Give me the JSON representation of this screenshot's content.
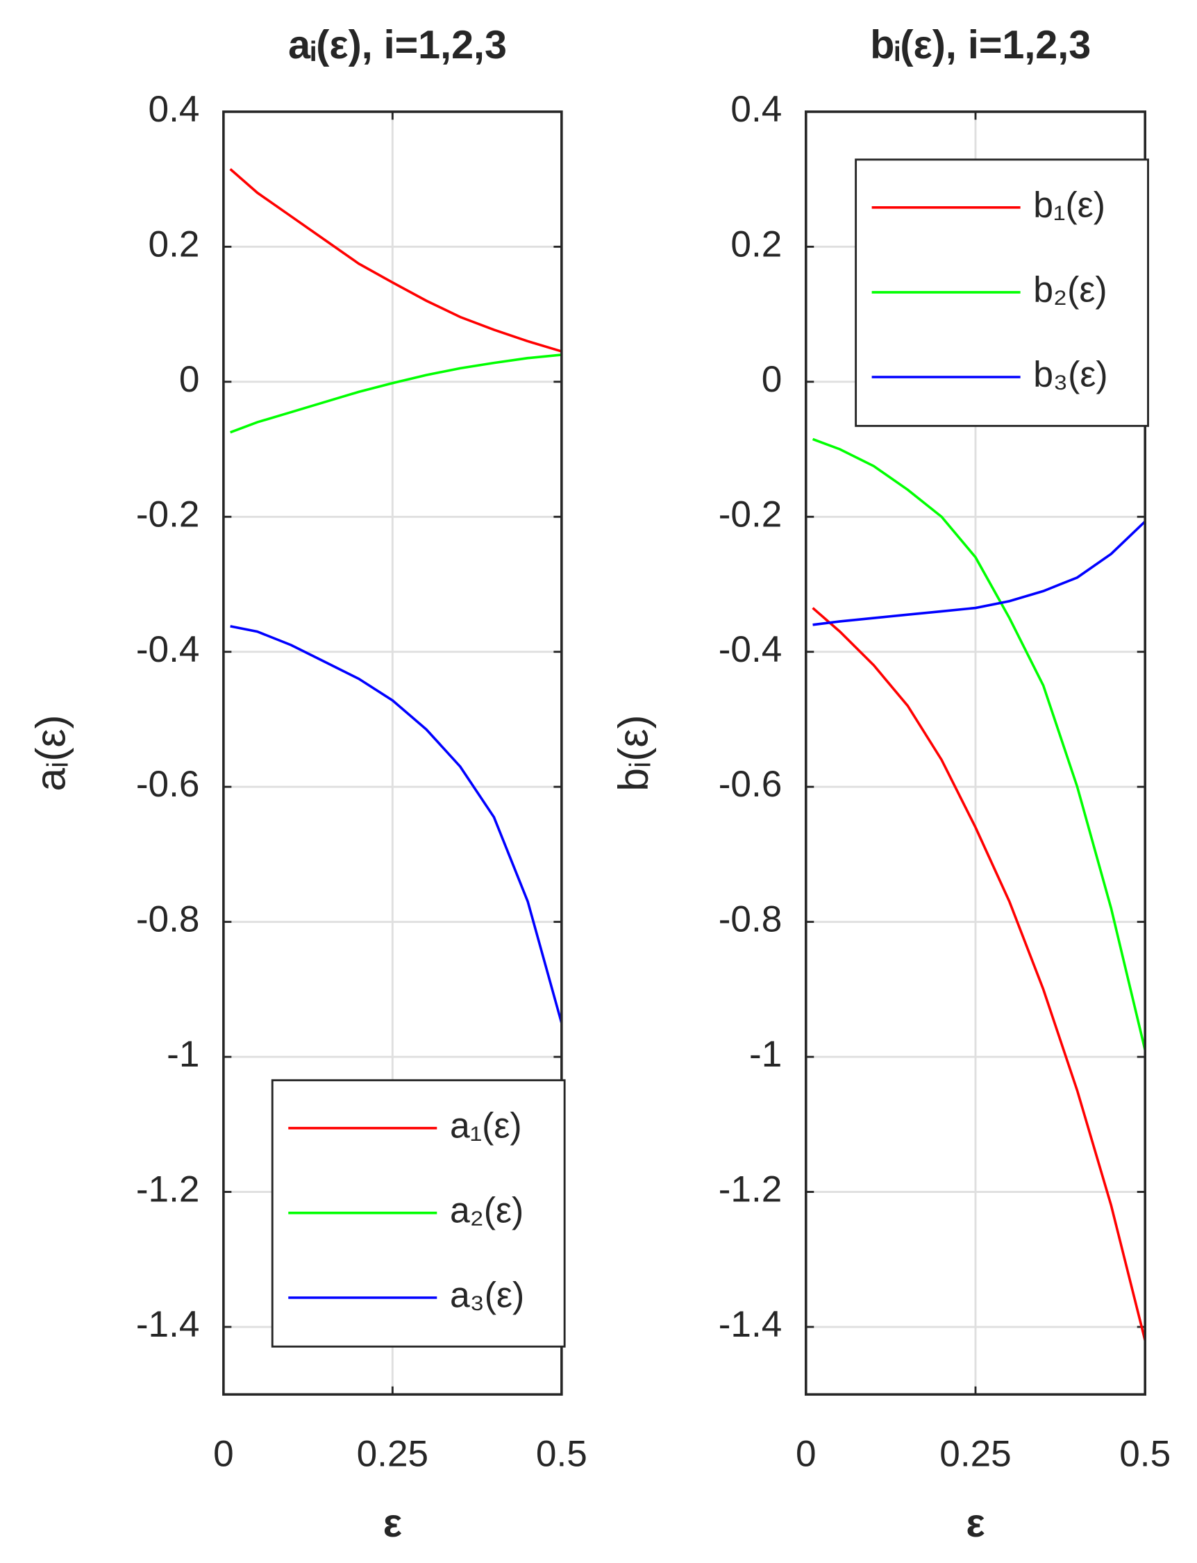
{
  "chart_data": [
    {
      "type": "line",
      "title": "aᵢ(ε), i=1,2,3",
      "xlabel": "ε",
      "ylabel": "aᵢ(ε)",
      "x": [
        0.01,
        0.05,
        0.1,
        0.15,
        0.2,
        0.25,
        0.3,
        0.35,
        0.4,
        0.45,
        0.5
      ],
      "series": [
        {
          "name": "a₁(ε)",
          "color": "#ff0000",
          "values": [
            0.315,
            0.28,
            0.245,
            0.21,
            0.175,
            0.147,
            0.12,
            0.096,
            0.077,
            0.06,
            0.045
          ]
        },
        {
          "name": "a₂(ε)",
          "color": "#00ff00",
          "values": [
            -0.075,
            -0.06,
            -0.045,
            -0.03,
            -0.015,
            -0.002,
            0.01,
            0.02,
            0.028,
            0.035,
            0.04
          ]
        },
        {
          "name": "a₃(ε)",
          "color": "#0000ff",
          "values": [
            -0.362,
            -0.37,
            -0.39,
            -0.415,
            -0.44,
            -0.472,
            -0.515,
            -0.57,
            -0.645,
            -0.77,
            -0.95
          ]
        }
      ],
      "xlim": [
        0,
        0.5
      ],
      "xticks": [
        0,
        0.25,
        0.5
      ],
      "ylim": [
        -1.5,
        0.4
      ],
      "yticks": [
        -1.4,
        -1.2,
        -1,
        -0.8,
        -0.6,
        -0.4,
        -0.2,
        0,
        0.2,
        0.4
      ],
      "grid": true,
      "legend": "lower-right"
    },
    {
      "type": "line",
      "title": "bᵢ(ε), i=1,2,3",
      "xlabel": "ε",
      "ylabel": "bᵢ(ε)",
      "x": [
        0.01,
        0.05,
        0.1,
        0.15,
        0.2,
        0.25,
        0.3,
        0.35,
        0.4,
        0.45,
        0.5
      ],
      "series": [
        {
          "name": "b₁(ε)",
          "color": "#ff0000",
          "values": [
            -0.335,
            -0.37,
            -0.42,
            -0.48,
            -0.56,
            -0.66,
            -0.77,
            -0.9,
            -1.05,
            -1.22,
            -1.42
          ]
        },
        {
          "name": "b₂(ε)",
          "color": "#00ff00",
          "values": [
            -0.085,
            -0.1,
            -0.125,
            -0.16,
            -0.2,
            -0.26,
            -0.35,
            -0.45,
            -0.6,
            -0.78,
            -0.99
          ]
        },
        {
          "name": "b₃(ε)",
          "color": "#0000ff",
          "values": [
            -0.36,
            -0.355,
            -0.35,
            -0.345,
            -0.34,
            -0.335,
            -0.325,
            -0.31,
            -0.29,
            -0.255,
            -0.207
          ]
        }
      ],
      "xlim": [
        0,
        0.5
      ],
      "xticks": [
        0,
        0.25,
        0.5
      ],
      "ylim": [
        -1.5,
        0.4
      ],
      "yticks": [
        -1.4,
        -1.2,
        -1,
        -0.8,
        -0.6,
        -0.4,
        -0.2,
        0,
        0.2,
        0.4
      ],
      "grid": true,
      "legend": "upper-right"
    }
  ]
}
